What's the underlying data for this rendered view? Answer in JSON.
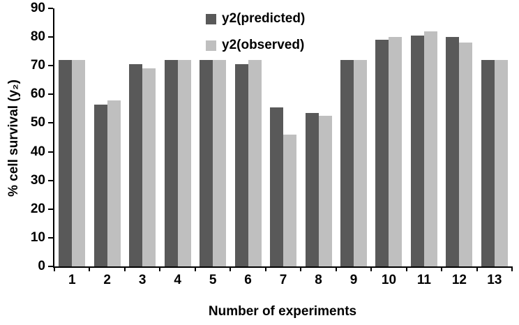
{
  "chart_data": {
    "type": "bar",
    "title": "",
    "xlabel": "Number of experiments",
    "ylabel": "% cell survival (y₂)",
    "categories": [
      "1",
      "2",
      "3",
      "4",
      "5",
      "6",
      "7",
      "8",
      "9",
      "10",
      "11",
      "12",
      "13"
    ],
    "series": [
      {
        "name": "y2(predicted)",
        "color": "#595959",
        "values": [
          72,
          56.5,
          70.5,
          72,
          72,
          70.5,
          55.5,
          53.5,
          72,
          79,
          80.5,
          80,
          72
        ]
      },
      {
        "name": "y2(observed)",
        "color": "#bfbfbf",
        "values": [
          72,
          58,
          69,
          72,
          72,
          72,
          46,
          52.5,
          72,
          80,
          82,
          78,
          72
        ]
      }
    ],
    "ylim": [
      0,
      90
    ],
    "ytick_step": 10,
    "grid": false,
    "legend_position": "top-center",
    "axis_color": "#000000",
    "background_color": "#ffffff"
  }
}
